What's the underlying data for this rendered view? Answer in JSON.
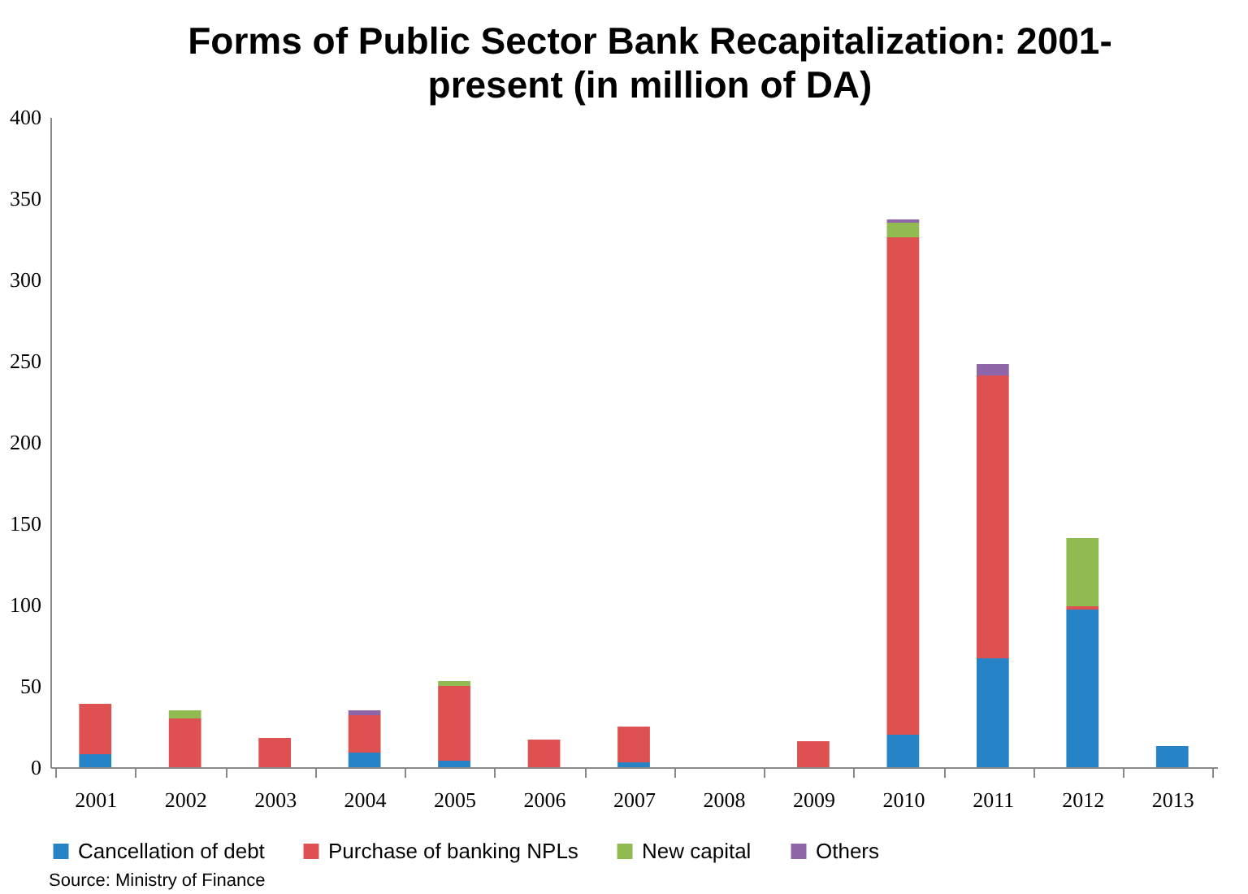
{
  "chart_data": {
    "type": "bar",
    "title": "Forms of Public Sector Bank Recapitalization: 2001-present (in million of DA)",
    "categories": [
      "2001",
      "2002",
      "2003",
      "2004",
      "2005",
      "2006",
      "2007",
      "2008",
      "2009",
      "2010",
      "2011",
      "2012",
      "2013"
    ],
    "series": [
      {
        "name": "Cancellation of debt",
        "color": "#2683c6",
        "values": [
          8,
          null,
          null,
          9,
          4,
          null,
          3,
          null,
          null,
          20,
          67,
          97,
          13
        ]
      },
      {
        "name": "Purchase of banking NPLs",
        "color": "#df5150",
        "values": [
          31,
          30,
          18,
          23,
          46,
          17,
          22,
          null,
          16,
          306,
          174,
          2,
          null
        ]
      },
      {
        "name": "New capital",
        "color": "#8fbb51",
        "values": [
          null,
          5,
          null,
          null,
          3,
          null,
          null,
          null,
          null,
          9,
          null,
          42,
          null
        ]
      },
      {
        "name": "Others",
        "color": "#8e66a8",
        "values": [
          null,
          null,
          null,
          3,
          null,
          null,
          null,
          null,
          null,
          2,
          7,
          null,
          null
        ]
      }
    ],
    "stacked": true,
    "ylim": [
      0,
      400
    ],
    "yticks": [
      0,
      50,
      100,
      150,
      200,
      250,
      300,
      350,
      400
    ],
    "legend": "bottom",
    "annotations": [
      "Source: Ministry of Finance"
    ]
  }
}
